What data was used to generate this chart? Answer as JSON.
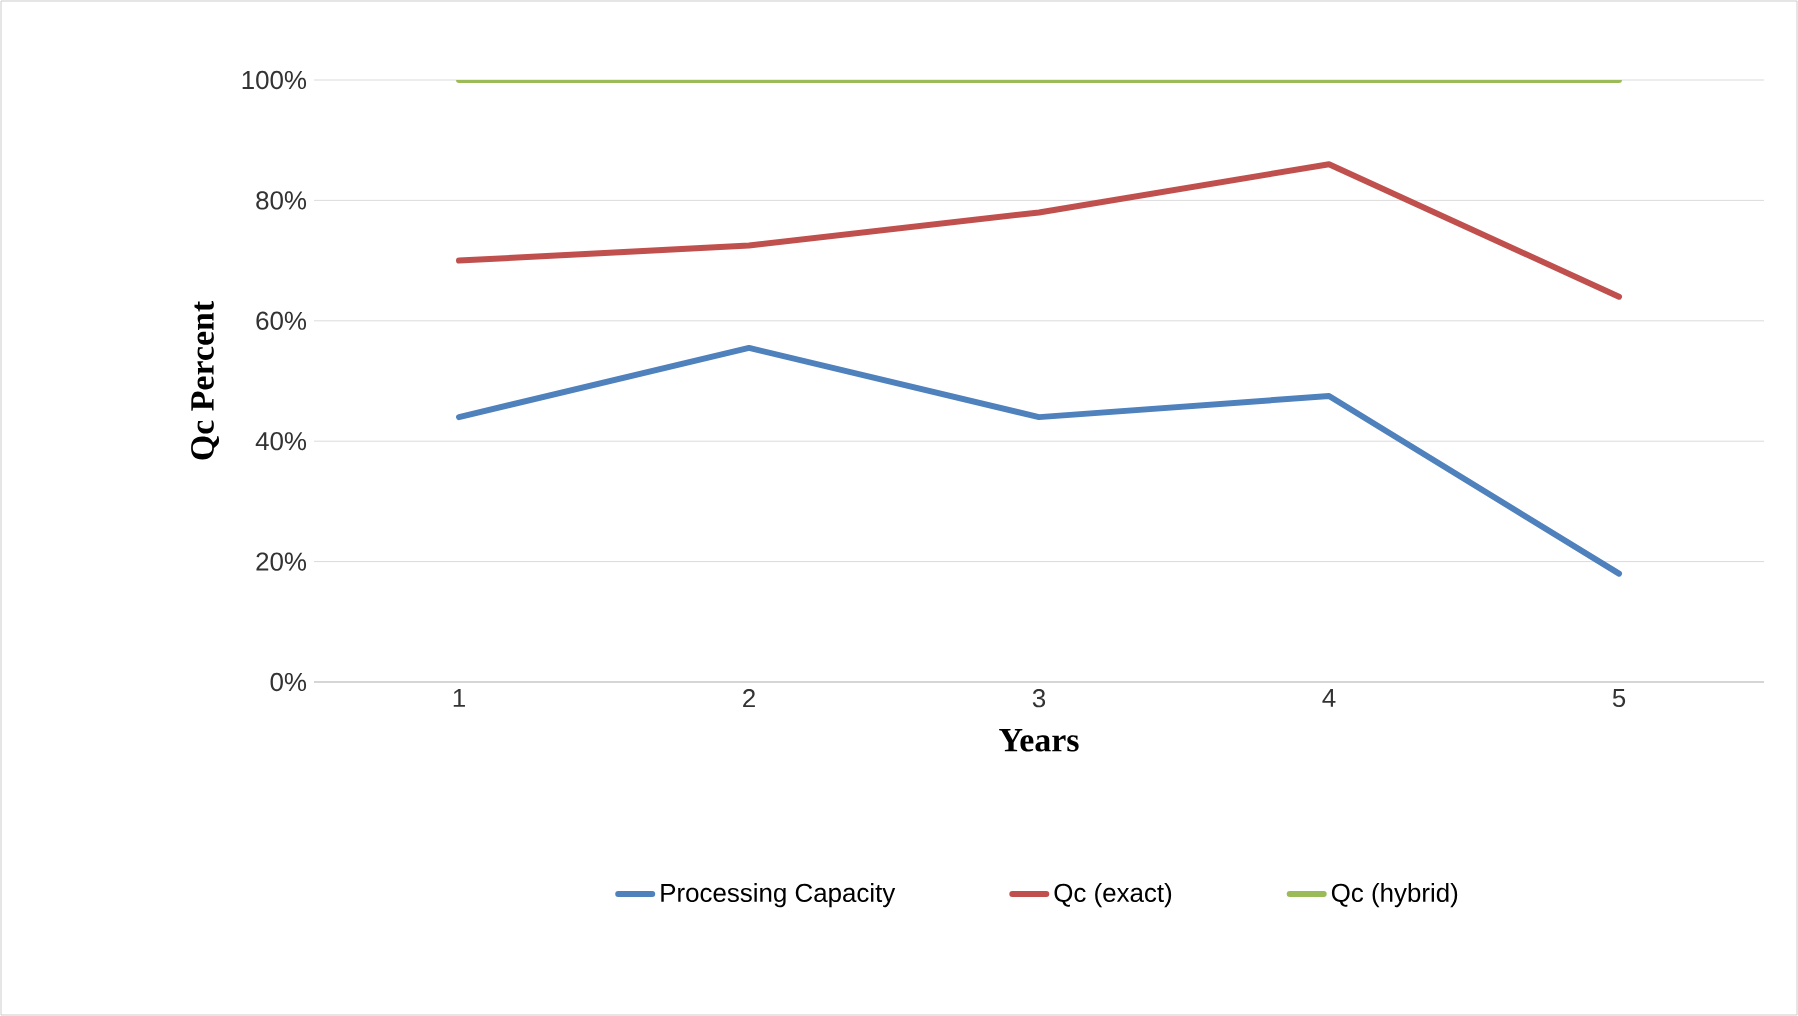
{
  "chart_data": {
    "type": "line",
    "xlabel": "Years",
    "ylabel": "Qc Percent",
    "categories": [
      "1",
      "2",
      "3",
      "4",
      "5"
    ],
    "series": [
      {
        "name": "Processing Capacity",
        "color": "#4f81bd",
        "values": [
          44,
          55.5,
          44,
          47.5,
          18
        ]
      },
      {
        "name": "Qc (exact)",
        "color": "#c0504d",
        "values": [
          70,
          72.5,
          78,
          86,
          64
        ]
      },
      {
        "name": "Qc (hybrid)",
        "color": "#9bbb59",
        "values": [
          100,
          100,
          100,
          100,
          100
        ]
      }
    ],
    "ylim": [
      0,
      100
    ],
    "yticks": [
      {
        "value": 0,
        "label": "0%"
      },
      {
        "value": 20,
        "label": "20%"
      },
      {
        "value": 40,
        "label": "40%"
      },
      {
        "value": 60,
        "label": "60%"
      },
      {
        "value": 80,
        "label": "80%"
      },
      {
        "value": 100,
        "label": "100%"
      }
    ],
    "grid": "y",
    "legend": "bottom"
  }
}
